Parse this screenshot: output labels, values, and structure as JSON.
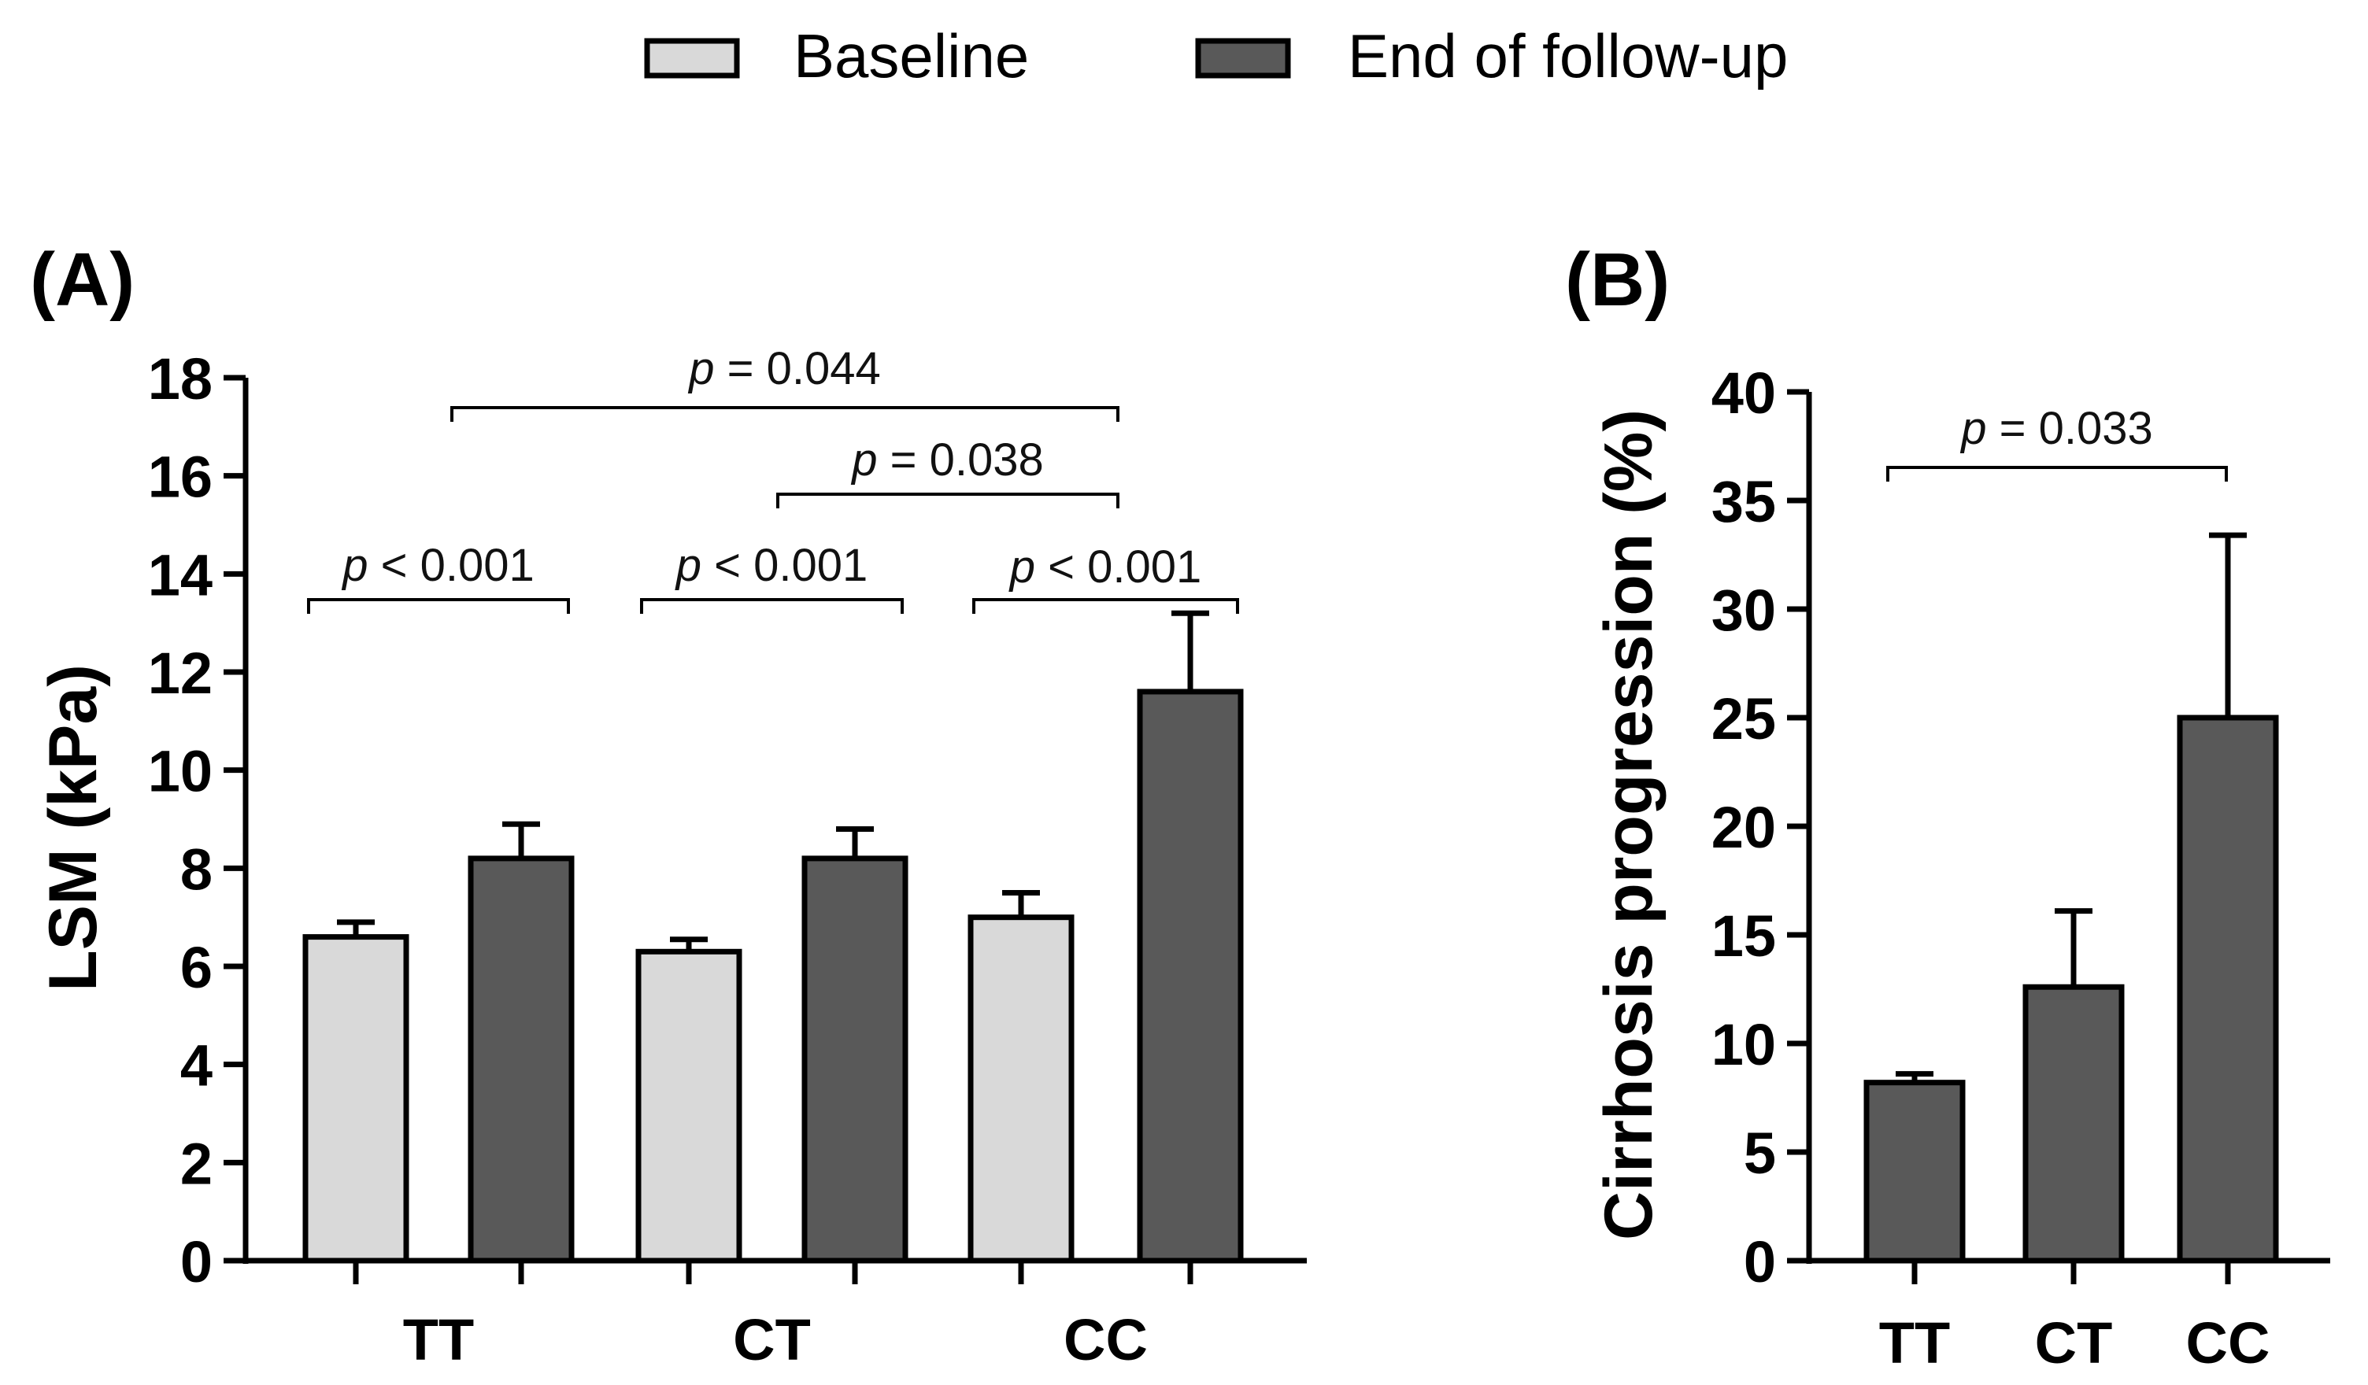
{
  "legend": {
    "baseline": {
      "label": "Baseline",
      "color": "#d9d9d9"
    },
    "end": {
      "label": "End of follow-up",
      "color": "#595959"
    }
  },
  "chart_data": [
    {
      "panel": "(A)",
      "type": "bar",
      "categories": [
        "TT",
        "CT",
        "CC"
      ],
      "series": [
        {
          "name": "Baseline",
          "values": [
            6.6,
            6.3,
            7.0
          ],
          "errors": [
            0.3,
            0.25,
            0.5
          ],
          "color": "#d9d9d9"
        },
        {
          "name": "End of follow-up",
          "values": [
            8.2,
            8.2,
            11.6
          ],
          "errors": [
            0.7,
            0.6,
            1.6
          ],
          "color": "#595959"
        }
      ],
      "ylabel": "LSM (kPa)",
      "ylim": [
        0,
        18
      ],
      "yticks": [
        0,
        2,
        4,
        6,
        8,
        10,
        12,
        14,
        16,
        18
      ],
      "annotations": [
        {
          "pre": "p",
          "text": " < 0.001",
          "from": "TT.Baseline",
          "to": "TT.End of follow-up"
        },
        {
          "pre": "p",
          "text": " < 0.001",
          "from": "CT.Baseline",
          "to": "CT.End of follow-up"
        },
        {
          "pre": "p",
          "text": " < 0.001",
          "from": "CC.Baseline",
          "to": "CC.End of follow-up"
        },
        {
          "pre": "p",
          "text": " = 0.038",
          "from": "CT.End of follow-up",
          "to": "CC.Baseline"
        },
        {
          "pre": "p",
          "text": " = 0.044",
          "from": "TT.End of follow-up",
          "to": "CC.Baseline"
        }
      ]
    },
    {
      "panel": "(B)",
      "type": "bar",
      "categories": [
        "TT",
        "CT",
        "CC"
      ],
      "values": [
        8.2,
        12.6,
        25.0
      ],
      "errors": [
        0.4,
        3.5,
        8.4
      ],
      "color": "#595959",
      "ylabel": "Cirrhosis progression (%)",
      "ylim": [
        0,
        40
      ],
      "yticks": [
        0,
        5,
        10,
        15,
        20,
        25,
        30,
        35,
        40
      ],
      "annotations": [
        {
          "pre": "p",
          "text": " = 0.033",
          "from": "TT",
          "to": "CC"
        }
      ]
    }
  ]
}
